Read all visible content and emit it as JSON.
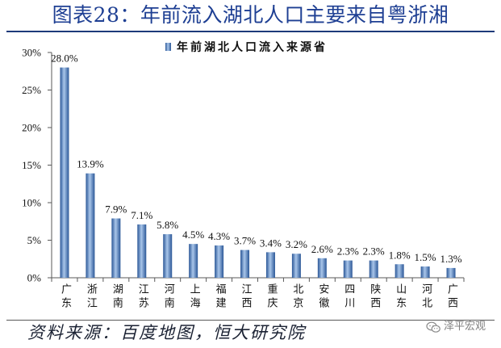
{
  "chart_data": {
    "type": "bar",
    "title": "图表28：年前流入湖北人口主要来自粤浙湘",
    "categories": [
      "广东",
      "浙江",
      "湖南",
      "江苏",
      "河南",
      "上海",
      "福建",
      "江西",
      "重庆",
      "北京",
      "安徽",
      "四川",
      "陕西",
      "山东",
      "河北",
      "广西"
    ],
    "series": [
      {
        "name": "年前湖北人口流入来源省",
        "values": [
          28.0,
          13.9,
          7.9,
          7.1,
          5.8,
          4.5,
          4.3,
          3.7,
          3.4,
          3.2,
          2.6,
          2.3,
          2.3,
          1.8,
          1.5,
          1.3
        ]
      }
    ],
    "data_labels": [
      "28.0%",
      "13.9%",
      "7.9%",
      "7.1%",
      "5.8%",
      "4.5%",
      "4.3%",
      "3.7%",
      "3.4%",
      "3.2%",
      "2.6%",
      "2.3%",
      "2.3%",
      "1.8%",
      "1.5%",
      "1.3%"
    ],
    "yticks": [
      0,
      5,
      10,
      15,
      20,
      25,
      30
    ],
    "ytick_labels": [
      "0%",
      "5%",
      "10%",
      "15%",
      "20%",
      "25%",
      "30%"
    ],
    "ylim": [
      0,
      30
    ],
    "grid": false,
    "legend": "top-center"
  },
  "footer": {
    "source": "资料来源：百度地图，恒大研究院",
    "watermark": "泽平宏观"
  },
  "icons": {
    "watermark_icon": "wechat-icon"
  },
  "colors": {
    "title": "#1e3f93",
    "rule": "#1e3b7a",
    "bar_edge": "#2b5797",
    "bar_highlight": "#a9c6ea",
    "axis": "#595959",
    "text": "#111111",
    "source": "#1b2233",
    "watermark": "#808080"
  }
}
